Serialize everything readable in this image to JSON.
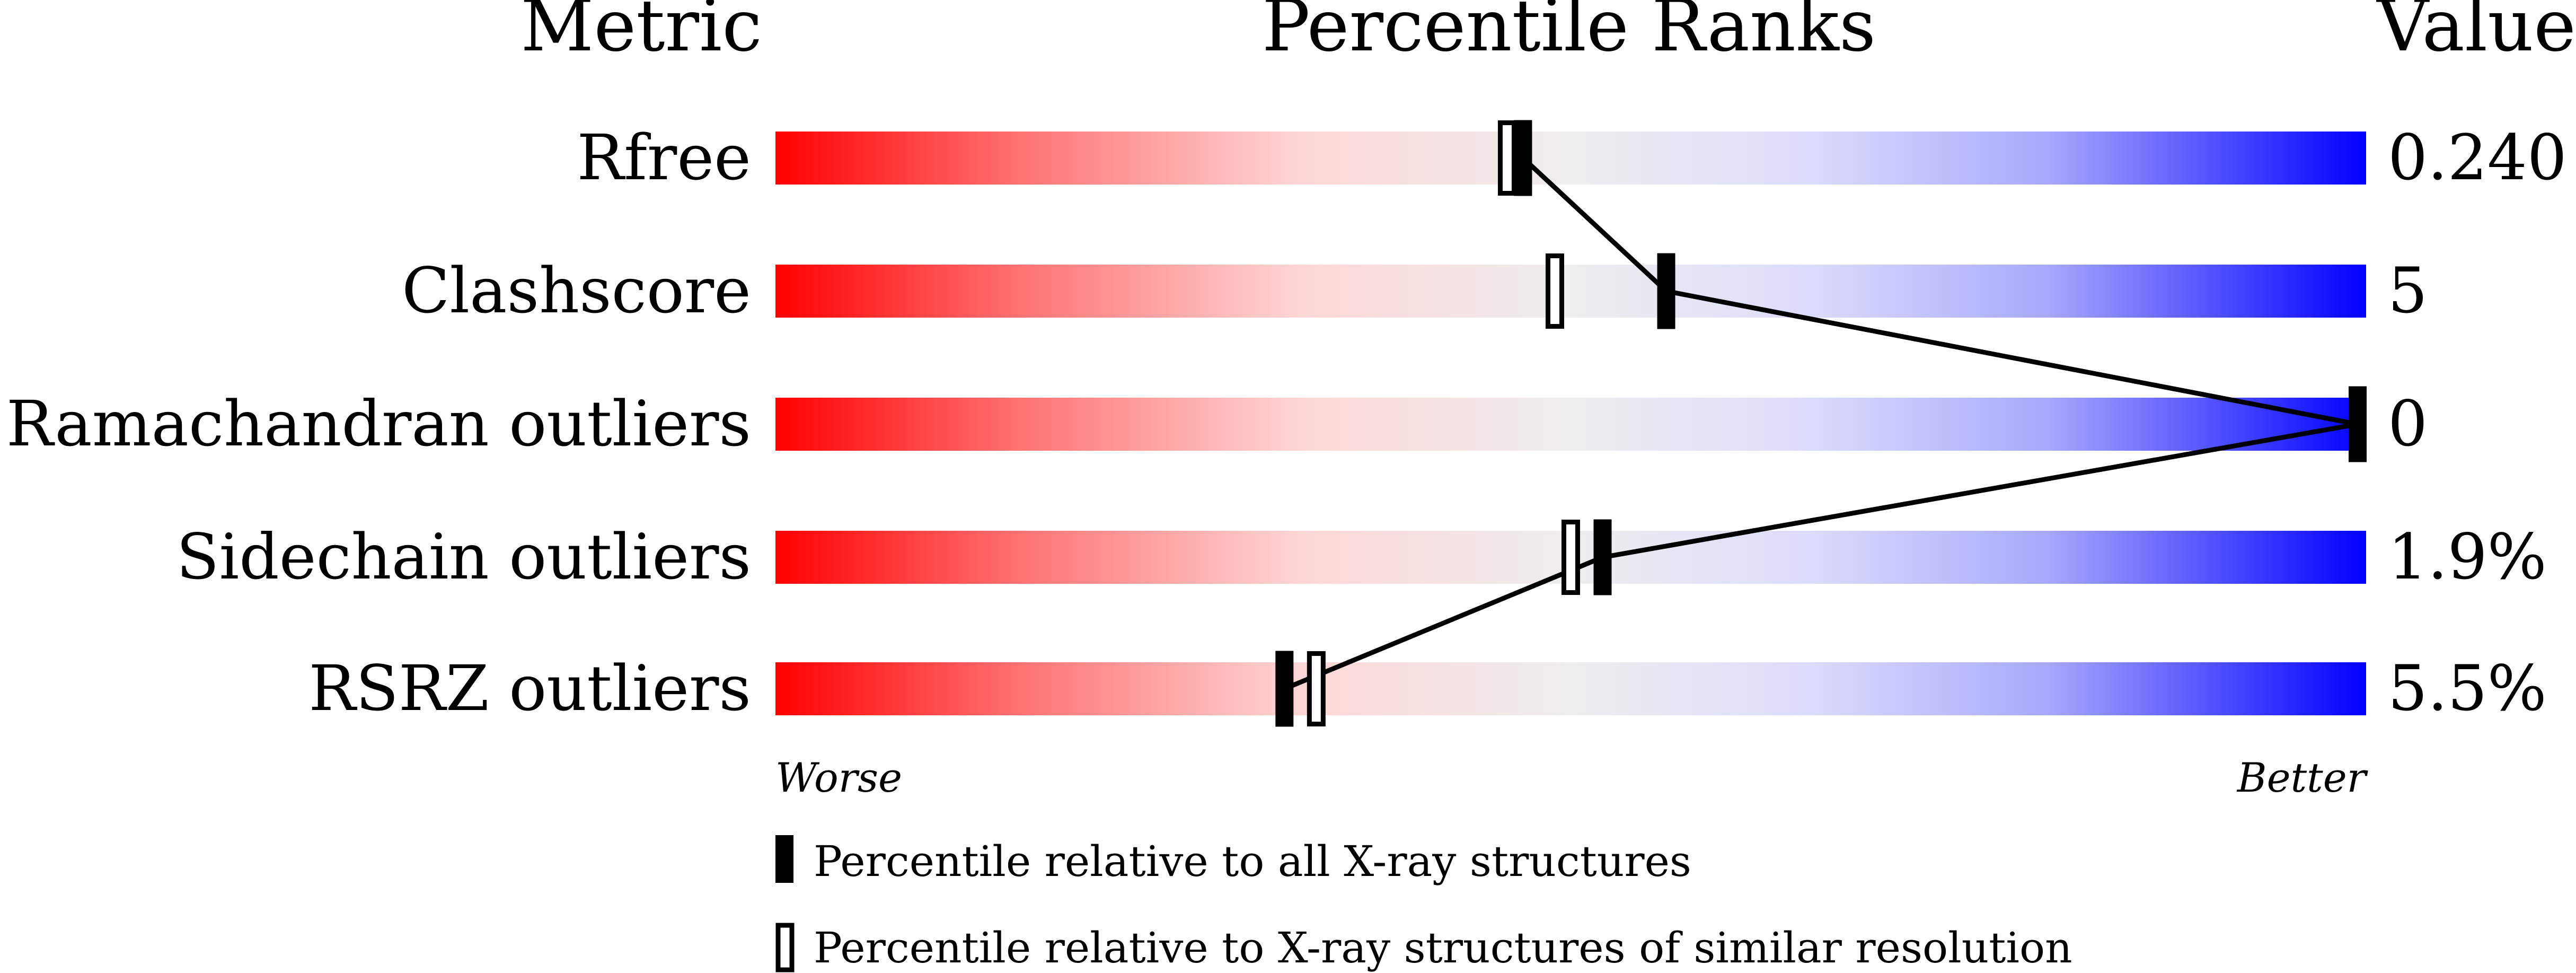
{
  "chart_data": {
    "type": "bar",
    "header": {
      "metric": "Metric",
      "ranks": "Percentile Ranks",
      "value": "Value"
    },
    "xlim": [
      0,
      100
    ],
    "metrics": [
      {
        "name": "Rfree",
        "value": "0.240",
        "percentile_all": 47,
        "percentile_similar": 46
      },
      {
        "name": "Clashscore",
        "value": "5",
        "percentile_all": 56,
        "percentile_similar": 49
      },
      {
        "name": "Ramachandran outliers",
        "value": "0",
        "percentile_all": 100,
        "percentile_similar": null
      },
      {
        "name": "Sidechain outliers",
        "value": "1.9%",
        "percentile_all": 52,
        "percentile_similar": 50
      },
      {
        "name": "RSRZ outliers",
        "value": "5.5%",
        "percentile_all": 32,
        "percentile_similar": 34
      }
    ],
    "axis": {
      "worse": "Worse",
      "better": "Better"
    },
    "legend": {
      "all": "Percentile relative to all X-ray structures",
      "similar": "Percentile relative to X-ray structures of similar resolution"
    },
    "colors": {
      "worse": "#ff0000",
      "mid": "#eeeeee",
      "better": "#0000ff",
      "marker": "#000000"
    }
  }
}
